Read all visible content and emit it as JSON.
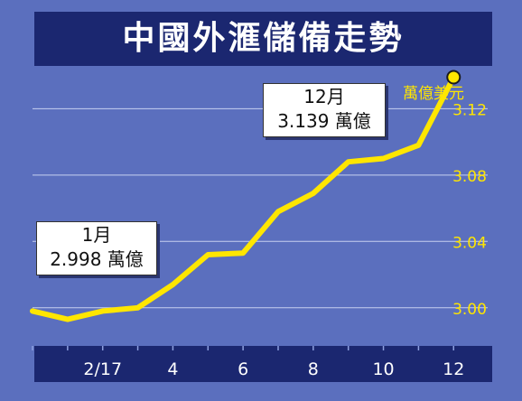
{
  "title": "中國外滙儲備走勢",
  "unit_label": "萬億美元",
  "callouts": {
    "jan": {
      "line1": "1月",
      "line2": "2.998 萬億"
    },
    "dec": {
      "line1": "12月",
      "line2": "3.139 萬億"
    }
  },
  "colors": {
    "background": "#5b6fbe",
    "bars": "#1b2770",
    "line": "#ffe600",
    "grid": "#c8d0f0",
    "tick_text": "#ffe600",
    "axis_text": "#ffffff"
  },
  "chart_data": {
    "type": "line",
    "title": "中國外滙儲備走勢",
    "ylabel": "萬億美元",
    "xlabel": "",
    "y_axis_position": "right",
    "ylim": [
      2.977,
      3.142
    ],
    "yticks": [
      3.0,
      3.04,
      3.08,
      3.12
    ],
    "ytick_labels": [
      "3.00",
      "3.04",
      "3.08",
      "3.12"
    ],
    "xlim": [
      0,
      13.1
    ],
    "xtick_positions": [
      2,
      4,
      6,
      8,
      10,
      12
    ],
    "xtick_labels": [
      "2/17",
      "4",
      "6",
      "8",
      "10",
      "12"
    ],
    "grid": true,
    "series": [
      {
        "x": [
          0,
          1,
          2,
          3,
          4,
          5,
          6,
          7,
          8,
          9,
          10,
          11,
          12
        ],
        "values": [
          2.998,
          2.993,
          2.998,
          3.0,
          3.014,
          3.032,
          3.033,
          3.058,
          3.069,
          3.088,
          3.09,
          3.098,
          3.139
        ]
      }
    ],
    "highlight_point": {
      "x": 12,
      "value": 3.139
    }
  }
}
